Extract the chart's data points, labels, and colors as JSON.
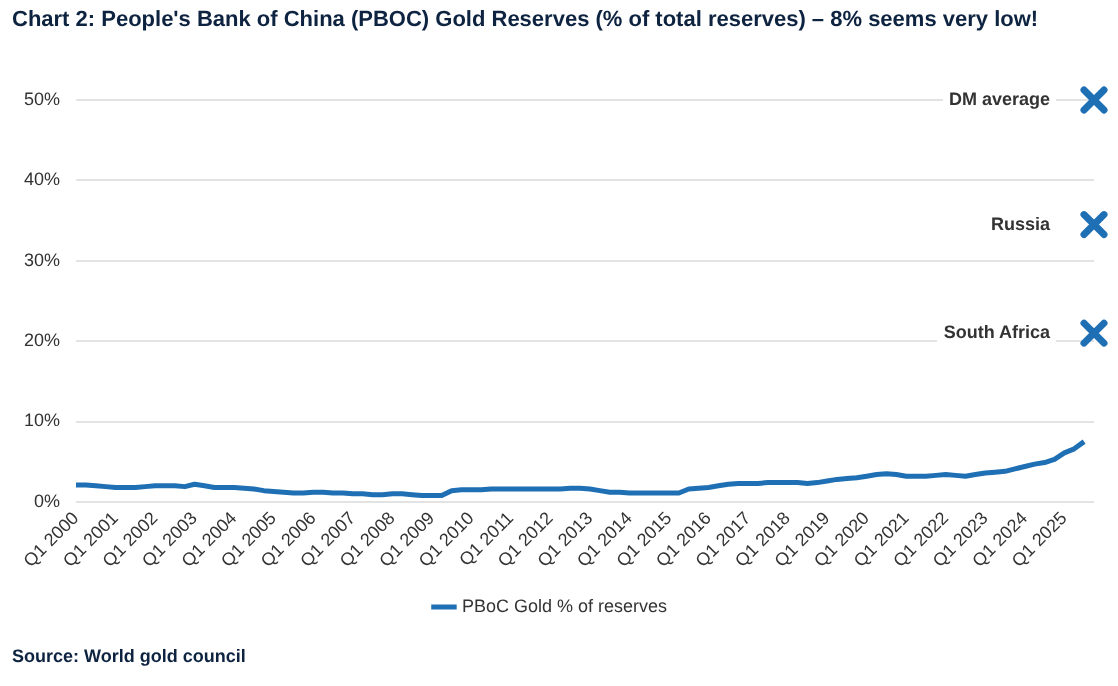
{
  "chart_data": {
    "type": "line",
    "title": "Chart 2: People's Bank of China (PBOC) Gold Reserves (% of total reserves) – 8% seems very low!",
    "categories": [
      "Q1 2000",
      null,
      null,
      null,
      "Q1 2001",
      null,
      null,
      null,
      "Q1 2002",
      null,
      null,
      null,
      "Q1 2003",
      null,
      null,
      null,
      "Q1 2004",
      null,
      null,
      null,
      "Q1 2005",
      null,
      null,
      null,
      "Q1 2006",
      null,
      null,
      null,
      "Q1 2007",
      null,
      null,
      null,
      "Q1 2008",
      null,
      null,
      null,
      "Q1 2009",
      null,
      null,
      null,
      "Q1 2010",
      null,
      null,
      null,
      "Q1 2011",
      null,
      null,
      null,
      "Q1 2012",
      null,
      null,
      null,
      "Q1 2013",
      null,
      null,
      null,
      "Q1 2014",
      null,
      null,
      null,
      "Q1 2015",
      null,
      null,
      null,
      "Q1 2016",
      null,
      null,
      null,
      "Q1 2017",
      null,
      null,
      null,
      "Q1 2018",
      null,
      null,
      null,
      "Q1 2019",
      null,
      null,
      null,
      "Q1 2020",
      null,
      null,
      null,
      "Q1 2021",
      null,
      null,
      null,
      "Q1 2022",
      null,
      null,
      null,
      "Q1 2023",
      null,
      null,
      null,
      "Q1 2024",
      null,
      null,
      null,
      "Q1 2025",
      null,
      null,
      null
    ],
    "series": [
      {
        "name": "PBoC Gold % of reserves",
        "color": "#1f6fb4",
        "values": [
          2.1,
          2.1,
          2.0,
          1.9,
          1.8,
          1.8,
          1.8,
          1.9,
          2.0,
          2.0,
          2.0,
          1.9,
          2.2,
          2.0,
          1.8,
          1.8,
          1.8,
          1.7,
          1.6,
          1.4,
          1.3,
          1.2,
          1.1,
          1.1,
          1.2,
          1.2,
          1.1,
          1.1,
          1.0,
          1.0,
          0.9,
          0.9,
          1.0,
          1.0,
          0.9,
          0.8,
          0.8,
          0.8,
          1.4,
          1.5,
          1.5,
          1.5,
          1.6,
          1.6,
          1.6,
          1.6,
          1.6,
          1.6,
          1.6,
          1.6,
          1.7,
          1.7,
          1.6,
          1.4,
          1.2,
          1.2,
          1.1,
          1.1,
          1.1,
          1.1,
          1.1,
          1.1,
          1.6,
          1.7,
          1.8,
          2.0,
          2.2,
          2.3,
          2.3,
          2.3,
          2.4,
          2.4,
          2.4,
          2.4,
          2.3,
          2.4,
          2.6,
          2.8,
          2.9,
          3.0,
          3.2,
          3.4,
          3.5,
          3.4,
          3.2,
          3.2,
          3.2,
          3.3,
          3.4,
          3.3,
          3.2,
          3.4,
          3.6,
          3.7,
          3.8,
          4.1,
          4.4,
          4.7,
          4.9,
          5.3,
          6.1,
          6.6,
          7.5,
          null
        ]
      },
      {
        "name": "DM average",
        "type": "scatter",
        "marker": "cross",
        "color": "#1f6fb4",
        "values": [
          null,
          null,
          null,
          null,
          null,
          null,
          null,
          null,
          null,
          null,
          null,
          null,
          null,
          null,
          null,
          null,
          null,
          null,
          null,
          null,
          null,
          null,
          null,
          null,
          null,
          null,
          null,
          null,
          null,
          null,
          null,
          null,
          null,
          null,
          null,
          null,
          null,
          null,
          null,
          null,
          null,
          null,
          null,
          null,
          null,
          null,
          null,
          null,
          null,
          null,
          null,
          null,
          null,
          null,
          null,
          null,
          null,
          null,
          null,
          null,
          null,
          null,
          null,
          null,
          null,
          null,
          null,
          null,
          null,
          null,
          null,
          null,
          null,
          null,
          null,
          null,
          null,
          null,
          null,
          null,
          null,
          null,
          null,
          null,
          null,
          null,
          null,
          null,
          null,
          null,
          null,
          null,
          null,
          null,
          null,
          null,
          null,
          null,
          null,
          null,
          null,
          null,
          null,
          50
        ]
      },
      {
        "name": "Russia",
        "type": "scatter",
        "marker": "cross",
        "color": "#1f6fb4",
        "values": [
          null,
          null,
          null,
          null,
          null,
          null,
          null,
          null,
          null,
          null,
          null,
          null,
          null,
          null,
          null,
          null,
          null,
          null,
          null,
          null,
          null,
          null,
          null,
          null,
          null,
          null,
          null,
          null,
          null,
          null,
          null,
          null,
          null,
          null,
          null,
          null,
          null,
          null,
          null,
          null,
          null,
          null,
          null,
          null,
          null,
          null,
          null,
          null,
          null,
          null,
          null,
          null,
          null,
          null,
          null,
          null,
          null,
          null,
          null,
          null,
          null,
          null,
          null,
          null,
          null,
          null,
          null,
          null,
          null,
          null,
          null,
          null,
          null,
          null,
          null,
          null,
          null,
          null,
          null,
          null,
          null,
          null,
          null,
          null,
          null,
          null,
          null,
          null,
          null,
          null,
          null,
          null,
          null,
          null,
          null,
          null,
          null,
          null,
          null,
          null,
          null,
          null,
          null,
          34.5
        ]
      },
      {
        "name": "South Africa",
        "type": "scatter",
        "marker": "cross",
        "color": "#1f6fb4",
        "values": [
          null,
          null,
          null,
          null,
          null,
          null,
          null,
          null,
          null,
          null,
          null,
          null,
          null,
          null,
          null,
          null,
          null,
          null,
          null,
          null,
          null,
          null,
          null,
          null,
          null,
          null,
          null,
          null,
          null,
          null,
          null,
          null,
          null,
          null,
          null,
          null,
          null,
          null,
          null,
          null,
          null,
          null,
          null,
          null,
          null,
          null,
          null,
          null,
          null,
          null,
          null,
          null,
          null,
          null,
          null,
          null,
          null,
          null,
          null,
          null,
          null,
          null,
          null,
          null,
          null,
          null,
          null,
          null,
          null,
          null,
          null,
          null,
          null,
          null,
          null,
          null,
          null,
          null,
          null,
          null,
          null,
          null,
          null,
          null,
          null,
          null,
          null,
          null,
          null,
          null,
          null,
          null,
          null,
          null,
          null,
          null,
          null,
          null,
          null,
          null,
          null,
          null,
          null,
          21
        ]
      }
    ],
    "ylim": [
      0,
      50
    ],
    "yticks": [
      {
        "value": 0,
        "label": "0%"
      },
      {
        "value": 10,
        "label": "10%"
      },
      {
        "value": 20,
        "label": "20%"
      },
      {
        "value": 30,
        "label": "30%"
      },
      {
        "value": 40,
        "label": "40%"
      },
      {
        "value": 50,
        "label": "50%"
      }
    ],
    "grid": "y",
    "legend": "bottom",
    "annotations": [
      "Source: World gold council"
    ]
  }
}
